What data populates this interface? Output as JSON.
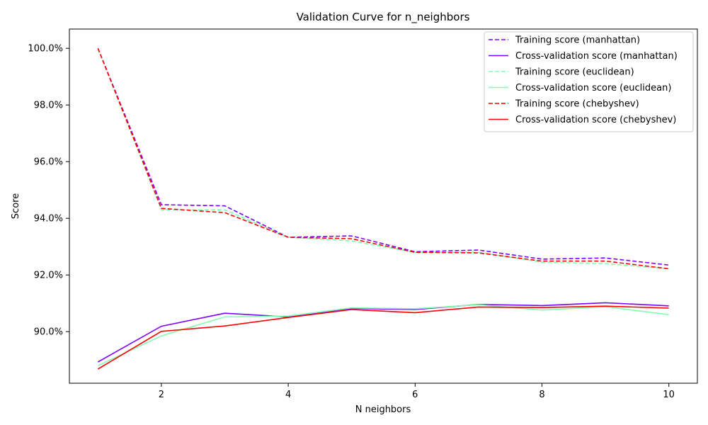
{
  "chart_data": {
    "type": "line",
    "title": "Validation Curve for n_neighbors",
    "xlabel": "N neighbors",
    "ylabel": "Score",
    "x": [
      1,
      2,
      3,
      4,
      5,
      6,
      7,
      8,
      9,
      10
    ],
    "xlim": [
      0.55,
      10.45
    ],
    "ylim": [
      0.8818,
      1.0068
    ],
    "xticks": [
      2,
      4,
      6,
      8,
      10
    ],
    "yticks": [
      0.9,
      0.92,
      0.94,
      0.96,
      0.98,
      1.0
    ],
    "y_format": "percent_1dp",
    "grid": false,
    "legend_position": "top-right",
    "series": [
      {
        "name": "Training score (manhattan)",
        "color": "#8000ff",
        "dash": true,
        "values": [
          1.0,
          0.9448,
          0.9444,
          0.9333,
          0.9338,
          0.9282,
          0.9288,
          0.9256,
          0.926,
          0.9235
        ]
      },
      {
        "name": "Cross-validation score (manhattan)",
        "color": "#8000ff",
        "dash": false,
        "values": [
          0.8893,
          0.9019,
          0.9065,
          0.9052,
          0.9082,
          0.9078,
          0.9096,
          0.9092,
          0.9102,
          0.9091
        ]
      },
      {
        "name": "Training score (euclidean)",
        "color": "#80ffb4",
        "dash": true,
        "values": [
          1.0,
          0.943,
          0.943,
          0.9333,
          0.932,
          0.928,
          0.928,
          0.9245,
          0.924,
          0.9222
        ]
      },
      {
        "name": "Cross-validation score (euclidean)",
        "color": "#80ffb4",
        "dash": false,
        "values": [
          0.888,
          0.8985,
          0.9052,
          0.9055,
          0.9084,
          0.9081,
          0.9095,
          0.9076,
          0.9088,
          0.906
        ]
      },
      {
        "name": "Training score (chebyshev)",
        "color": "#ff0000",
        "dash": true,
        "values": [
          1.0,
          0.9435,
          0.942,
          0.9333,
          0.9328,
          0.928,
          0.9278,
          0.9249,
          0.9249,
          0.9222
        ]
      },
      {
        "name": "Cross-validation score (chebyshev)",
        "color": "#ff0000",
        "dash": false,
        "values": [
          0.8868,
          0.9001,
          0.902,
          0.905,
          0.9078,
          0.9067,
          0.9087,
          0.9085,
          0.909,
          0.9083
        ]
      }
    ]
  }
}
